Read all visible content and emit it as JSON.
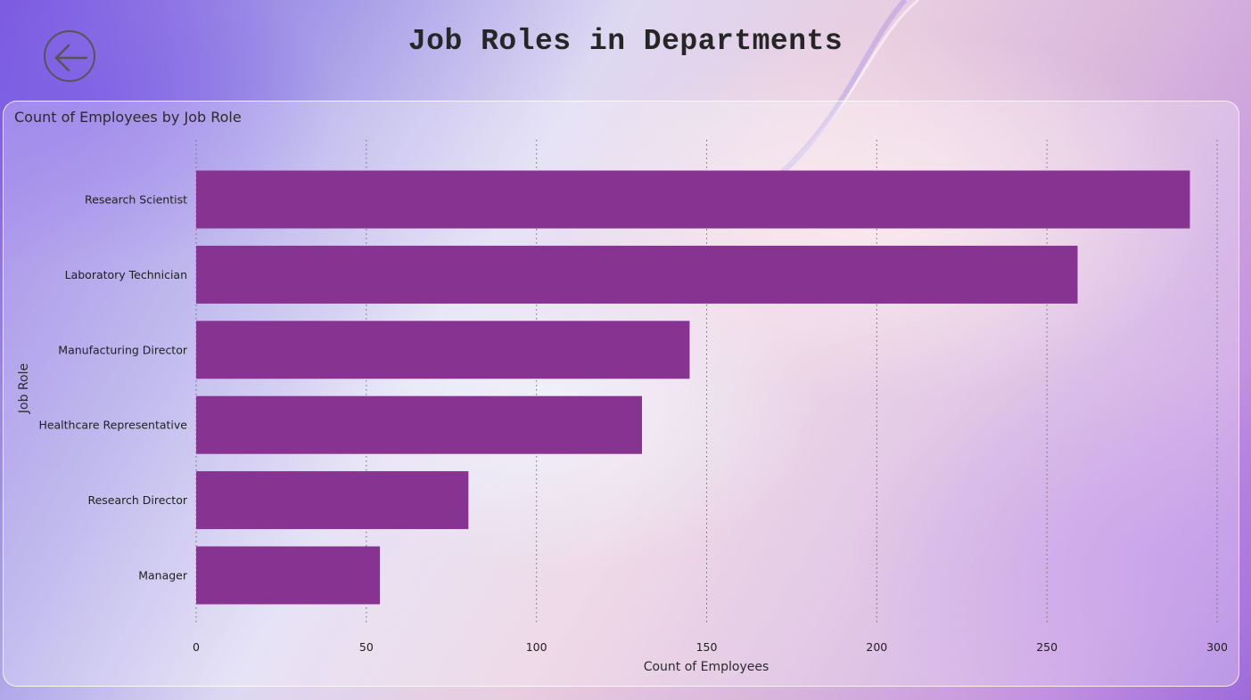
{
  "page": {
    "title": "Job Roles in Departments",
    "back_icon": "arrow-left-circle-icon"
  },
  "colors": {
    "bar": "#863392",
    "gridline": "#6b6b6b",
    "text": "#1f1f1f"
  },
  "chart_data": {
    "type": "bar",
    "orientation": "horizontal",
    "title": "Count of Employees by Job Role",
    "xlabel": "Count of Employees",
    "ylabel": "Job Role",
    "categories": [
      "Research Scientist",
      "Laboratory Technician",
      "Manufacturing Director",
      "Healthcare Representative",
      "Research Director",
      "Manager"
    ],
    "values": [
      292,
      259,
      145,
      131,
      80,
      54
    ],
    "xlim": [
      0,
      300
    ],
    "xticks": [
      0,
      50,
      100,
      150,
      200,
      250,
      300
    ],
    "grid": true,
    "legend": "none"
  }
}
